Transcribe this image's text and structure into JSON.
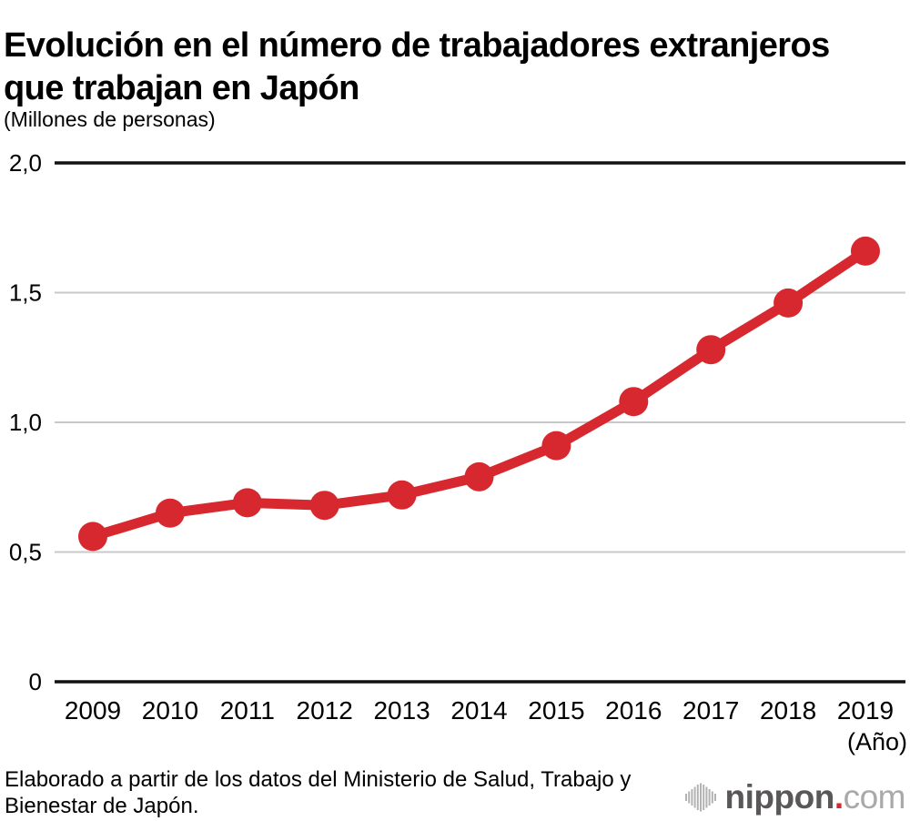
{
  "page": {
    "title_line1": "Evolución en el número de trabajadores extranjeros",
    "title_line2": "que trabajan en Japón",
    "units_label": "(Millones de personas)"
  },
  "chart_data": {
    "type": "line",
    "title": "Evolución en el número de trabajadores extranjeros que trabajan en Japón",
    "ylabel": "(Millones de personas)",
    "xlabel": "(Año)",
    "x": [
      "2009",
      "2010",
      "2011",
      "2012",
      "2013",
      "2014",
      "2015",
      "2016",
      "2017",
      "2018",
      "2019"
    ],
    "values": [
      0.56,
      0.65,
      0.69,
      0.68,
      0.72,
      0.79,
      0.91,
      1.08,
      1.28,
      1.46,
      1.66
    ],
    "ylim": [
      0,
      2
    ],
    "yticks": [
      0,
      0.5,
      1,
      1.5,
      2
    ],
    "ytick_labels": [
      "0",
      "0,5",
      "1,0",
      "1,5",
      "2,0"
    ],
    "grid": "horizontal-only",
    "legend": "none",
    "marker": "circle",
    "line_color": "#d7282f"
  },
  "footer": {
    "source_line1": "Elaborado a partir de los datos del Ministerio de Salud, Trabajo y",
    "source_line2": "Bienestar de Japón.",
    "logo": {
      "brand": "nippon",
      "dot": ".",
      "tld": "com",
      "icon": "soundwave-bars-icon"
    }
  },
  "colors": {
    "line": "#d7282f",
    "marker": "#d7282f",
    "axis": "#111111",
    "gridline": "#c9c9c9",
    "text": "#000000",
    "logo_brand": "#595757",
    "logo_tld": "#a9a9a9",
    "logo_bars": "#b3b3b3",
    "logo_dot": "#d7282f"
  }
}
